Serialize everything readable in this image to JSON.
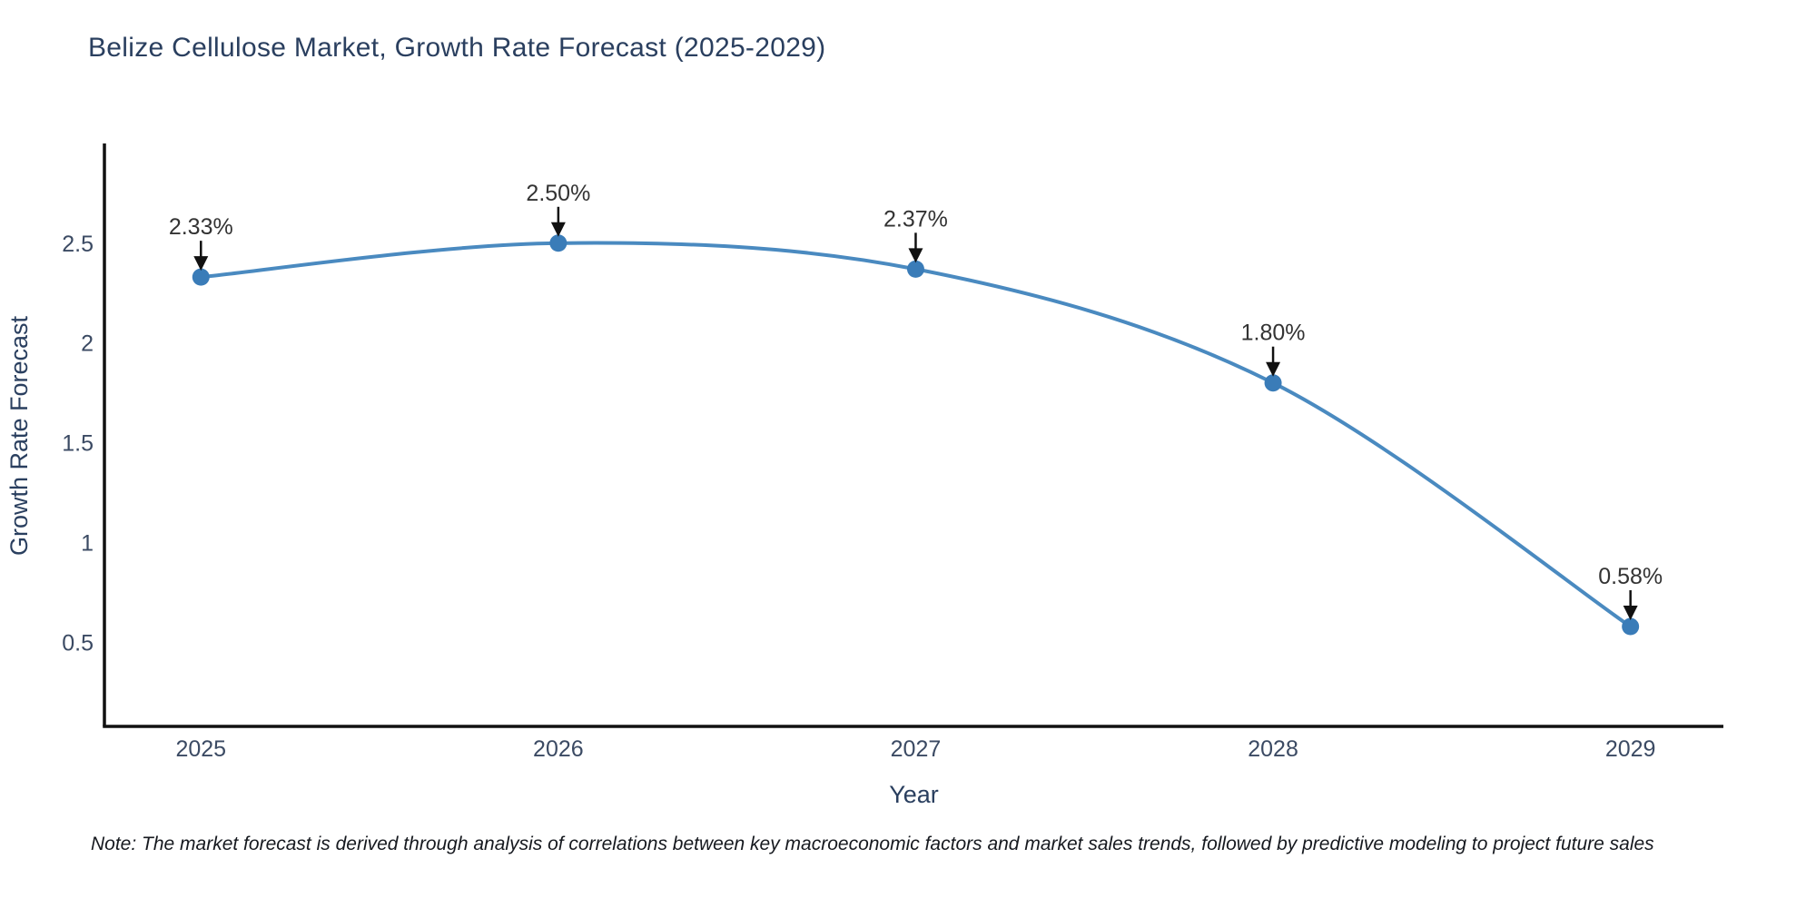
{
  "title": "Belize Cellulose Market, Growth Rate Forecast (2025-2029)",
  "note": "Note: The market forecast is derived through analysis of correlations between key macroeconomic factors and market sales trends, followed by predictive modeling to project future sales",
  "chart_data": {
    "type": "line",
    "title": "Belize Cellulose Market, Growth Rate Forecast (2025-2029)",
    "xlabel": "Year",
    "ylabel": "Growth Rate Forecast",
    "x": [
      2025,
      2026,
      2027,
      2028,
      2029
    ],
    "series": [
      {
        "name": "Growth Rate Forecast",
        "values": [
          2.33,
          2.5,
          2.37,
          1.8,
          0.58
        ]
      }
    ],
    "point_labels": [
      "2.33%",
      "2.50%",
      "2.37%",
      "1.80%",
      "0.58%"
    ],
    "xticks": [
      2025,
      2026,
      2027,
      2028,
      2029
    ],
    "yticks": [
      0.5,
      1,
      1.5,
      2,
      2.5
    ],
    "xlim": [
      2024.73,
      2029.26
    ],
    "ylim": [
      0.08,
      2.99
    ],
    "grid": false,
    "legend": false,
    "line_shape": "spline",
    "colors": {
      "line": "#4a8ac0",
      "marker": "#3a7cb8",
      "axis": "#111111",
      "title_text": "#2a3f5f",
      "tick_text": "#3b4a63",
      "annotation_text": "#333333",
      "arrow": "#111111",
      "background": "#ffffff"
    }
  }
}
